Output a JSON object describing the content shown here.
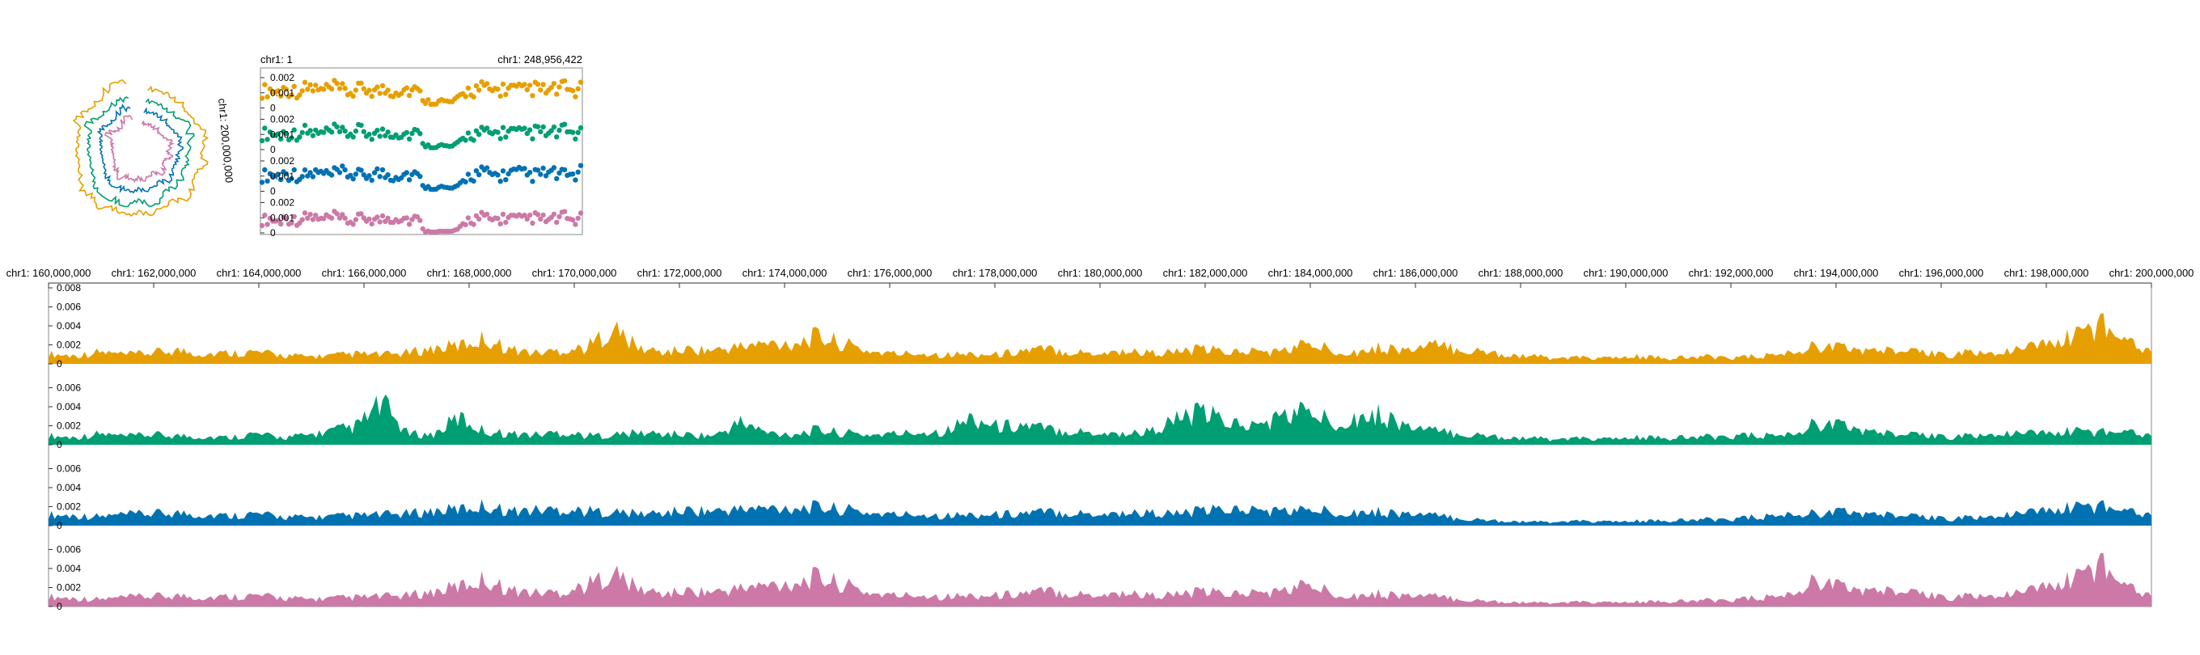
{
  "colors": {
    "track1": "#E69F00",
    "track2": "#009E73",
    "track3": "#0072B2",
    "track4": "#CC79A7",
    "axis": "#333333",
    "frame": "#888888"
  },
  "circular_view": {
    "label": "chr1: 200,000,000"
  },
  "overview": {
    "start_label": "chr1: 1",
    "end_label": "chr1: 248,956,422"
  },
  "chart_data": [
    {
      "type": "scatter",
      "title": "",
      "x_range": [
        1,
        248956422
      ],
      "ylim": [
        0,
        0.0025
      ],
      "y_ticks": [
        "0.002",
        "0.001",
        "0"
      ],
      "series": [
        {
          "values": [
            0.0012,
            0.0013,
            0.0011,
            0.0014,
            0.0012,
            0.0013,
            0.0015,
            0.0012,
            0.0013,
            0.0014,
            0.0012,
            0.0011,
            0.0013,
            0.0014,
            0.0012,
            0.0013,
            0.0012,
            0.0014,
            0.0013,
            0.0012,
            0.0005,
            0.0004,
            0.0005,
            0.0004,
            0.0006,
            0.0012,
            0.0013,
            0.0014,
            0.0012,
            0.0013,
            0.0014,
            0.0013,
            0.0012,
            0.0014,
            0.0013,
            0.0012,
            0.0013,
            0.0014,
            0.0012,
            0.0013
          ]
        },
        {
          "values": [
            0.0011,
            0.0012,
            0.001,
            0.0012,
            0.0011,
            0.0013,
            0.0012,
            0.0011,
            0.0012,
            0.0013,
            0.0011,
            0.0012,
            0.0013,
            0.0012,
            0.0011,
            0.0012,
            0.0013,
            0.0012,
            0.0011,
            0.0012,
            0.0003,
            0.0002,
            0.0003,
            0.0002,
            0.0004,
            0.001,
            0.0011,
            0.0012,
            0.0011,
            0.0012,
            0.0013,
            0.0012,
            0.0011,
            0.0012,
            0.0013,
            0.0011,
            0.0012,
            0.0013,
            0.0012,
            0.0011
          ]
        },
        {
          "values": [
            0.0011,
            0.0012,
            0.0011,
            0.0013,
            0.0012,
            0.0011,
            0.0012,
            0.0013,
            0.0011,
            0.0012,
            0.0013,
            0.0012,
            0.0011,
            0.0012,
            0.0013,
            0.0012,
            0.0011,
            0.0013,
            0.0012,
            0.0011,
            0.0003,
            0.0002,
            0.0003,
            0.0002,
            0.0003,
            0.001,
            0.0012,
            0.0013,
            0.0012,
            0.0011,
            0.0012,
            0.0013,
            0.0012,
            0.0011,
            0.0012,
            0.0013,
            0.0012,
            0.0011,
            0.0012,
            0.0013
          ]
        },
        {
          "values": [
            0.0009,
            0.001,
            0.0008,
            0.0011,
            0.0009,
            0.001,
            0.0012,
            0.0009,
            0.001,
            0.0011,
            0.0009,
            0.0008,
            0.001,
            0.0011,
            0.0009,
            0.001,
            0.0011,
            0.0012,
            0.0009,
            0.001,
            0.0001,
            0.0001,
            0.0001,
            0.0001,
            0.0002,
            0.0009,
            0.001,
            0.0011,
            0.0009,
            0.001,
            0.0011,
            0.001,
            0.0009,
            0.0011,
            0.001,
            0.0009,
            0.001,
            0.0011,
            0.0009,
            0.001
          ]
        }
      ]
    },
    {
      "type": "area",
      "title": "",
      "x_range": [
        160000000,
        200000000
      ],
      "x_ticks": [
        {
          "value": 160000000,
          "label": "chr1: 160,000,000"
        },
        {
          "value": 162000000,
          "label": "chr1: 162,000,000"
        },
        {
          "value": 164000000,
          "label": "chr1: 164,000,000"
        },
        {
          "value": 166000000,
          "label": "chr1: 166,000,000"
        },
        {
          "value": 168000000,
          "label": "chr1: 168,000,000"
        },
        {
          "value": 170000000,
          "label": "chr1: 170,000,000"
        },
        {
          "value": 172000000,
          "label": "chr1: 172,000,000"
        },
        {
          "value": 174000000,
          "label": "chr1: 174,000,000"
        },
        {
          "value": 176000000,
          "label": "chr1: 176,000,000"
        },
        {
          "value": 178000000,
          "label": "chr1: 178,000,000"
        },
        {
          "value": 180000000,
          "label": "chr1: 180,000,000"
        },
        {
          "value": 182000000,
          "label": "chr1: 182,000,000"
        },
        {
          "value": 184000000,
          "label": "chr1: 184,000,000"
        },
        {
          "value": 186000000,
          "label": "chr1: 186,000,000"
        },
        {
          "value": 188000000,
          "label": "chr1: 188,000,000"
        },
        {
          "value": 190000000,
          "label": "chr1: 190,000,000"
        },
        {
          "value": 192000000,
          "label": "chr1: 192,000,000"
        },
        {
          "value": 194000000,
          "label": "chr1: 194,000,000"
        },
        {
          "value": 196000000,
          "label": "chr1: 196,000,000"
        },
        {
          "value": 198000000,
          "label": "chr1: 198,000,000"
        },
        {
          "value": 200000000,
          "label": "chr1: 200,000,000"
        }
      ],
      "ylim": [
        0,
        0.008
      ],
      "y_ticks": [
        "0.008",
        "0.006",
        "0.004",
        "0.002",
        "0"
      ],
      "grid": false,
      "series": [
        {
          "values": [
            0.0011,
            0.0009,
            0.0013,
            0.001,
            0.0012,
            0.0015,
            0.0011,
            0.0012,
            0.0013,
            0.001,
            0.0008,
            0.0009,
            0.0011,
            0.001,
            0.0012,
            0.0017,
            0.002,
            0.0028,
            0.0016,
            0.0012,
            0.0015,
            0.0018,
            0.004,
            0.0017,
            0.0013,
            0.0016,
            0.0015,
            0.0019,
            0.0022,
            0.0023,
            0.003,
            0.0022,
            0.0014,
            0.0011,
            0.0012,
            0.001,
            0.0011,
            0.001,
            0.0015,
            0.0016,
            0.0013,
            0.0012,
            0.0014,
            0.0012,
            0.0013,
            0.0016,
            0.0013,
            0.0014,
            0.0013,
            0.0022,
            0.0016,
            0.0013,
            0.0018,
            0.0015,
            0.002,
            0.0016,
            0.0013,
            0.001,
            0.0008,
            0.0006,
            0.0007,
            0.0006,
            0.0008,
            0.0006,
            0.0007,
            0.0008,
            0.0007,
            0.0009,
            0.0012,
            0.0021,
            0.0017,
            0.0015,
            0.0014,
            0.0012,
            0.001,
            0.0013,
            0.0011,
            0.0016,
            0.0023,
            0.003,
            0.0045,
            0.0028,
            0.0016
          ]
        },
        {
          "values": [
            0.001,
            0.0008,
            0.0012,
            0.0009,
            0.0011,
            0.001,
            0.0009,
            0.0008,
            0.0012,
            0.0008,
            0.001,
            0.0015,
            0.002,
            0.0045,
            0.0012,
            0.0011,
            0.003,
            0.0015,
            0.0012,
            0.0011,
            0.0014,
            0.001,
            0.0011,
            0.0013,
            0.0012,
            0.0011,
            0.001,
            0.0025,
            0.0013,
            0.0012,
            0.0016,
            0.0013,
            0.0011,
            0.0012,
            0.0014,
            0.0015,
            0.003,
            0.002,
            0.0022,
            0.0017,
            0.0015,
            0.0013,
            0.0012,
            0.0015,
            0.0028,
            0.0035,
            0.0025,
            0.002,
            0.003,
            0.0038,
            0.0025,
            0.003,
            0.0033,
            0.002,
            0.0015,
            0.0012,
            0.001,
            0.0008,
            0.0007,
            0.0006,
            0.0007,
            0.0006,
            0.0008,
            0.0007,
            0.0008,
            0.0009,
            0.001,
            0.001,
            0.0011,
            0.0025,
            0.002,
            0.0015,
            0.0011,
            0.001,
            0.0009,
            0.001,
            0.0011,
            0.0012,
            0.0013,
            0.0015,
            0.0014,
            0.0016,
            0.0012
          ]
        },
        {
          "values": [
            0.0012,
            0.0011,
            0.001,
            0.0012,
            0.0013,
            0.0014,
            0.0012,
            0.0011,
            0.0013,
            0.001,
            0.0009,
            0.001,
            0.0011,
            0.0012,
            0.0013,
            0.0016,
            0.0018,
            0.0022,
            0.0016,
            0.0017,
            0.0018,
            0.0016,
            0.0015,
            0.0013,
            0.0014,
            0.0017,
            0.0016,
            0.0018,
            0.0019,
            0.002,
            0.002,
            0.0018,
            0.0014,
            0.0012,
            0.0013,
            0.0011,
            0.0012,
            0.0012,
            0.0014,
            0.0015,
            0.0014,
            0.0013,
            0.0014,
            0.0014,
            0.0013,
            0.0016,
            0.0018,
            0.0017,
            0.0016,
            0.0017,
            0.0016,
            0.0015,
            0.0015,
            0.0013,
            0.0011,
            0.0008,
            0.0006,
            0.0005,
            0.0004,
            0.0004,
            0.0005,
            0.0004,
            0.0005,
            0.0005,
            0.0006,
            0.0007,
            0.0008,
            0.001,
            0.0012,
            0.0014,
            0.0015,
            0.0013,
            0.0011,
            0.0009,
            0.0008,
            0.0009,
            0.001,
            0.0013,
            0.0017,
            0.002,
            0.0022,
            0.0018,
            0.0014
          ]
        },
        {
          "values": [
            0.0011,
            0.0009,
            0.0008,
            0.001,
            0.0011,
            0.0012,
            0.001,
            0.0011,
            0.0012,
            0.001,
            0.0008,
            0.0009,
            0.001,
            0.0011,
            0.0012,
            0.0016,
            0.0022,
            0.003,
            0.0018,
            0.0015,
            0.0016,
            0.0023,
            0.0038,
            0.0019,
            0.0014,
            0.0017,
            0.0016,
            0.002,
            0.0023,
            0.0026,
            0.0032,
            0.0024,
            0.0015,
            0.0012,
            0.0013,
            0.0011,
            0.0012,
            0.0012,
            0.0015,
            0.0017,
            0.0014,
            0.0013,
            0.0015,
            0.0012,
            0.0013,
            0.0016,
            0.0014,
            0.0015,
            0.0016,
            0.0024,
            0.0016,
            0.0012,
            0.0014,
            0.0012,
            0.0011,
            0.0008,
            0.0006,
            0.0005,
            0.0004,
            0.0004,
            0.0005,
            0.0004,
            0.0005,
            0.0005,
            0.0006,
            0.0007,
            0.0008,
            0.001,
            0.0013,
            0.0031,
            0.002,
            0.0018,
            0.0016,
            0.0013,
            0.001,
            0.0012,
            0.0011,
            0.0015,
            0.0023,
            0.003,
            0.0048,
            0.0025,
            0.0014
          ]
        }
      ]
    }
  ]
}
